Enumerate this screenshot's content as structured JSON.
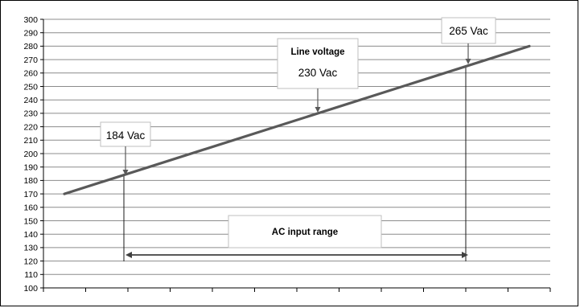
{
  "chart_data": {
    "type": "line",
    "title": "",
    "xlabel": "",
    "ylabel": "",
    "ylim": [
      100,
      300
    ],
    "y_ticks": [
      300,
      290,
      280,
      270,
      260,
      250,
      240,
      230,
      220,
      210,
      200,
      190,
      180,
      170,
      160,
      150,
      140,
      130,
      120,
      110,
      100
    ],
    "grid": true,
    "legend": "none",
    "x_tick_count": 13,
    "series": [
      {
        "values": [
          170,
          280
        ],
        "color": "#595959"
      }
    ],
    "annotations": {
      "low": {
        "text": "184 Vac",
        "value": 184
      },
      "line_voltage": {
        "title": "Line voltage",
        "text": "230 Vac",
        "value": 230
      },
      "high": {
        "text": "265 Vac",
        "value": 265
      },
      "range": {
        "text": "AC input range",
        "from": 184,
        "to": 265
      }
    }
  }
}
